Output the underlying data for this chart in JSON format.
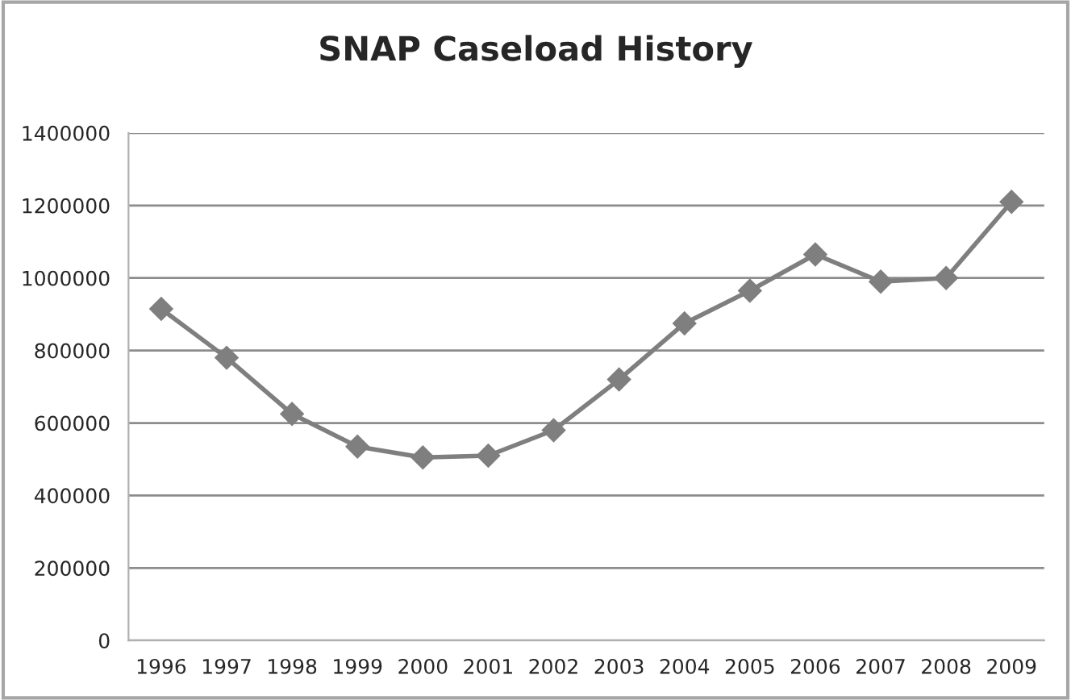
{
  "chart_data": {
    "type": "line",
    "title": "SNAP Caseload History",
    "categories": [
      "1996",
      "1997",
      "1998",
      "1999",
      "2000",
      "2001",
      "2002",
      "2003",
      "2004",
      "2005",
      "2006",
      "2007",
      "2008",
      "2009"
    ],
    "series": [
      {
        "color": "#7f7f7f",
        "values": [
          915000,
          780000,
          625000,
          535000,
          505000,
          510000,
          580000,
          720000,
          875000,
          965000,
          1065000,
          990000,
          1000000,
          1210000
        ]
      }
    ],
    "ylim": [
      0,
      1400000
    ],
    "yticks": [
      0,
      200000,
      400000,
      600000,
      800000,
      1000000,
      1200000,
      1400000
    ],
    "grid": "y",
    "legend": false,
    "marker": "diamond",
    "line_style": "solid"
  }
}
